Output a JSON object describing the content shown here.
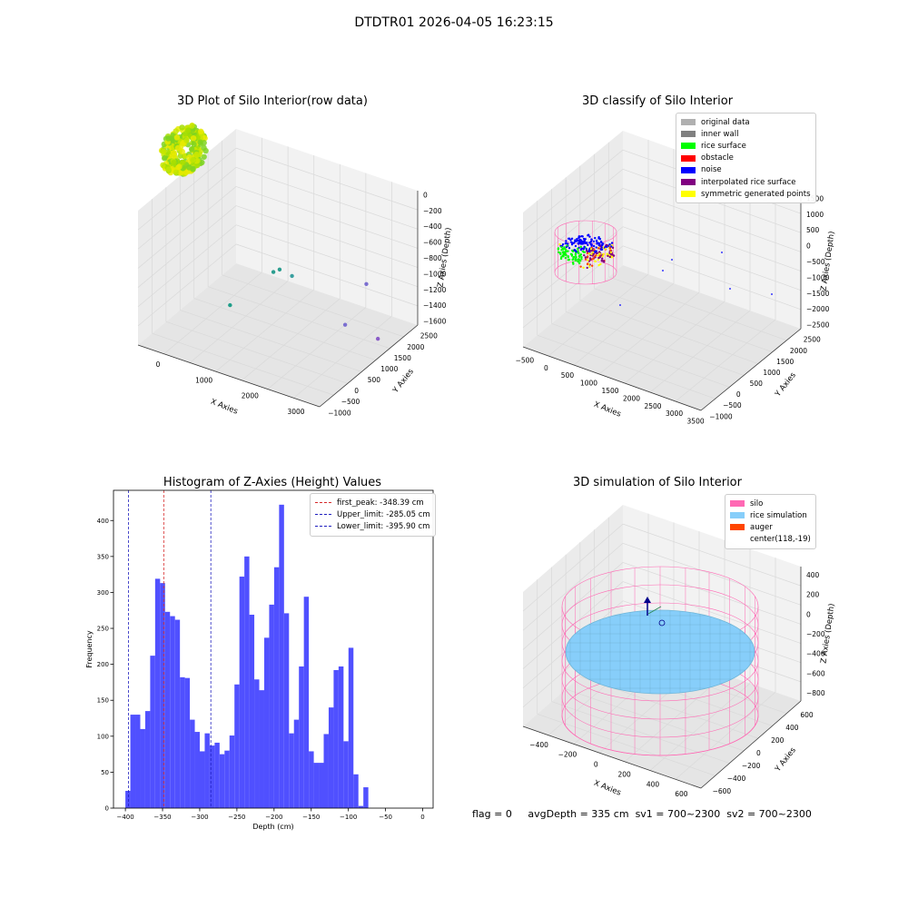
{
  "suptitle": "DTDTR01 2026-04-05 16:23:15",
  "colors": {
    "grid": "#d9d9d9",
    "pane_light": "#f2f2f2",
    "pane_mid": "#ebebeb",
    "pane_dark": "#e5e5e5",
    "hist": "#5050ff",
    "first_peak": "#d62728",
    "limit": "#1f1fbf",
    "silo": "#ff69b4",
    "rice_sim": "#87cefa",
    "auger": "#ff4500",
    "arrow": "#00008b"
  },
  "footer": {
    "flag": "flag = 0",
    "avg_depth": "avgDepth = 335 cm",
    "sv1": "sv1 = 700~2300",
    "sv2": "sv2 = 700~2300"
  },
  "chart_data": [
    {
      "id": "raw",
      "type": "scatter3d",
      "title": "3D Plot of Silo Interior(row data)",
      "xlabel": "X Axies",
      "ylabel": "Y Axies",
      "zlabel": "Z Axies (Depth)",
      "xticks": [
        "0",
        "1000",
        "2000",
        "3000"
      ],
      "yticks": [
        "−1000",
        "−500",
        "0",
        "500",
        "1000",
        "1500",
        "2000",
        "2500"
      ],
      "zticks": [
        "0",
        "−200",
        "−400",
        "−600",
        "−800",
        "−1000",
        "−1200",
        "−1400",
        "−1600"
      ],
      "xlim": [
        -500,
        3600
      ],
      "ylim": [
        -1100,
        2600
      ],
      "zlim": [
        -1700,
        50
      ],
      "cluster": {
        "center": [
          0,
          -200
        ],
        "radius": 450,
        "z": [
          -600,
          -200
        ],
        "colors": [
          "#7ed321",
          "#a4de02",
          "#c8e600",
          "#e8ea00"
        ]
      },
      "outliers": [
        {
          "x": 1300,
          "y": 1000,
          "z": -1000,
          "color": "#2a9d8f"
        },
        {
          "x": 1500,
          "y": 900,
          "z": -900,
          "color": "#2a9d8f"
        },
        {
          "x": 1600,
          "y": 1200,
          "z": -1050,
          "color": "#3aa0a0"
        },
        {
          "x": 800,
          "y": 200,
          "z": -1300,
          "color": "#1f9e89"
        },
        {
          "x": 2800,
          "y": 2000,
          "z": -1150,
          "color": "#7b6fd0"
        },
        {
          "x": 2800,
          "y": 1200,
          "z": -1450,
          "color": "#7b6fd0"
        },
        {
          "x": 3300,
          "y": 1600,
          "z": -1650,
          "color": "#8a5cc8"
        }
      ]
    },
    {
      "id": "classify",
      "type": "scatter3d",
      "title": "3D classify of Silo Interior",
      "xlabel": "X Axies",
      "ylabel": "Y Axies",
      "zlabel": "Z Axies (Depth)",
      "xticks": [
        "−500",
        "0",
        "500",
        "1000",
        "1500",
        "2000",
        "2500",
        "3000",
        "3500"
      ],
      "yticks": [
        "−1000",
        "−500",
        "0",
        "500",
        "1000",
        "1500",
        "2000",
        "2500"
      ],
      "zticks": [
        "1500",
        "1000",
        "500",
        "0",
        "−500",
        "−1000",
        "−1500",
        "−2000",
        "−2500"
      ],
      "xlim": [
        -600,
        3600
      ],
      "ylim": [
        -1100,
        2700
      ],
      "zlim": [
        -2700,
        1600
      ],
      "legend": [
        {
          "label": "original data",
          "color": "#b0b0b0"
        },
        {
          "label": "inner wall",
          "color": "#808080"
        },
        {
          "label": "rice surface",
          "color": "#00ff00"
        },
        {
          "label": "obstacle",
          "color": "#ff0000"
        },
        {
          "label": "noise",
          "color": "#0000ff"
        },
        {
          "label": "interpolated rice surface",
          "color": "#800080"
        },
        {
          "label": "symmetric generated points",
          "color": "#ffff00"
        }
      ]
    },
    {
      "id": "hist",
      "type": "bar",
      "title": "Histogram of Z-Axies (Height) Values",
      "xlabel": "Depth (cm)",
      "ylabel": "Frequency",
      "xlim": [
        -416,
        14
      ],
      "ylim": [
        0,
        442
      ],
      "xticks": [
        -400,
        -350,
        -300,
        -250,
        -200,
        -150,
        -100,
        -50,
        0
      ],
      "yticks": [
        0,
        50,
        100,
        150,
        200,
        250,
        300,
        350,
        400
      ],
      "bin_start": -400,
      "bin_width": 6.67,
      "values": [
        24,
        130,
        130,
        110,
        135,
        212,
        319,
        313,
        273,
        267,
        262,
        182,
        181,
        123,
        106,
        79,
        104,
        87,
        91,
        75,
        80,
        101,
        172,
        322,
        350,
        269,
        179,
        164,
        237,
        283,
        335,
        422,
        271,
        104,
        123,
        197,
        294,
        79,
        63,
        63,
        103,
        140,
        192,
        197,
        93,
        223,
        47,
        3,
        29
      ],
      "lines": [
        {
          "label": "first_peak: -348.39 cm",
          "x": -348.39,
          "color": "#d62728"
        },
        {
          "label": "Upper_limit: -285.05 cm",
          "x": -285.05,
          "color": "#1f1fbf"
        },
        {
          "label": "Lower_limit: -395.90 cm",
          "x": -395.9,
          "color": "#1f1fbf"
        }
      ]
    },
    {
      "id": "sim",
      "type": "surface3d",
      "title": "3D simulation of Silo Interior",
      "xlabel": "X Axies",
      "ylabel": "Y Axies",
      "zlabel": "Z Axies (Depth)",
      "xticks": [
        "−400",
        "−200",
        "0",
        "200",
        "400",
        "600"
      ],
      "yticks": [
        "−600",
        "−400",
        "−200",
        "0",
        "200",
        "400",
        "600"
      ],
      "zticks": [
        "400",
        "200",
        "0",
        "−200",
        "−400",
        "−600",
        "−800"
      ],
      "xlim": [
        -550,
        750
      ],
      "ylim": [
        -700,
        700
      ],
      "zlim": [
        -900,
        450
      ],
      "silo": {
        "center": [
          118,
          -19
        ],
        "radius": 560,
        "z": [
          -850,
          350
        ]
      },
      "rice_level": -335,
      "legend": [
        {
          "label": "silo",
          "color": "#ff69b4"
        },
        {
          "label": "rice simulation",
          "color": "#87cefa"
        },
        {
          "label": "auger",
          "color": "#ff4500"
        },
        {
          "label": "center(118,-19)",
          "color": null
        }
      ]
    }
  ]
}
